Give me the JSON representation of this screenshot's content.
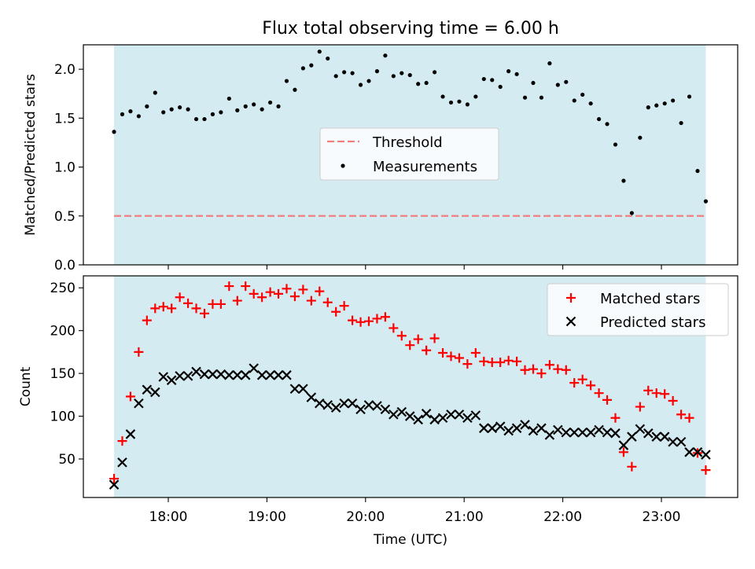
{
  "chart_data": {
    "title": "Flux total observing time = 6.00 h",
    "observing_window": [
      "17:27",
      "23:27"
    ],
    "colors": {
      "window": "#add8e6",
      "threshold": "#f08080",
      "measurements": "#000000",
      "matched": "#ff0000",
      "predicted": "#000000"
    },
    "panels": [
      {
        "type": "scatter",
        "ylabel": "Matched/Predicted stars",
        "ylim": [
          0,
          2.25
        ],
        "yticks": [
          0.0,
          0.5,
          1.0,
          1.5,
          2.0
        ],
        "ytick_labels": [
          "0.0",
          "0.5",
          "1.0",
          "1.5",
          "2.0"
        ],
        "legend_position": "center",
        "threshold": {
          "name": "Threshold",
          "value": 0.5
        },
        "series": [
          {
            "name": "Measurements",
            "marker": "dot",
            "x": [
              "17:27",
              "17:32",
              "17:37",
              "17:42",
              "17:47",
              "17:52",
              "17:57",
              "18:02",
              "18:07",
              "18:12",
              "18:17",
              "18:22",
              "18:27",
              "18:32",
              "18:37",
              "18:42",
              "18:47",
              "18:52",
              "18:57",
              "19:02",
              "19:07",
              "19:12",
              "19:17",
              "19:22",
              "19:27",
              "19:32",
              "19:37",
              "19:42",
              "19:47",
              "19:52",
              "19:57",
              "20:02",
              "20:07",
              "20:12",
              "20:17",
              "20:22",
              "20:27",
              "20:32",
              "20:37",
              "20:42",
              "20:47",
              "20:52",
              "20:57",
              "21:02",
              "21:07",
              "21:12",
              "21:17",
              "21:22",
              "21:27",
              "21:32",
              "21:37",
              "21:42",
              "21:47",
              "21:52",
              "21:57",
              "22:02",
              "22:07",
              "22:12",
              "22:17",
              "22:22",
              "22:27",
              "22:32",
              "22:37",
              "22:42",
              "22:47",
              "22:52",
              "22:57",
              "23:02",
              "23:07",
              "23:12",
              "23:17",
              "23:22",
              "23:27"
            ],
            "y": [
              1.36,
              1.54,
              1.57,
              1.52,
              1.62,
              1.76,
              1.56,
              1.59,
              1.61,
              1.59,
              1.49,
              1.49,
              1.54,
              1.56,
              1.7,
              1.58,
              1.62,
              1.64,
              1.59,
              1.66,
              1.62,
              1.88,
              1.79,
              2.01,
              2.04,
              2.18,
              2.11,
              1.93,
              1.97,
              1.96,
              1.84,
              1.88,
              1.98,
              2.14,
              1.93,
              1.96,
              1.94,
              1.85,
              1.86,
              1.97,
              1.72,
              1.66,
              1.67,
              1.64,
              1.72,
              1.9,
              1.89,
              1.82,
              1.98,
              1.95,
              1.71,
              1.86,
              1.71,
              2.06,
              1.84,
              1.87,
              1.68,
              1.74,
              1.65,
              1.49,
              1.44,
              1.23,
              0.86,
              0.53,
              1.3,
              1.61,
              1.63,
              1.65,
              1.68,
              1.45,
              1.72,
              0.96,
              0.65
            ]
          }
        ]
      },
      {
        "type": "scatter",
        "xlabel": "Time (UTC)",
        "ylabel": "Count",
        "ylim": [
          5,
          264
        ],
        "yticks": [
          50,
          100,
          150,
          200,
          250
        ],
        "ytick_labels": [
          "50",
          "100",
          "150",
          "200",
          "250"
        ],
        "xticks": [
          "18:00",
          "19:00",
          "20:00",
          "21:00",
          "22:00",
          "23:00"
        ],
        "legend_position": "top-right",
        "series": [
          {
            "name": "Matched stars",
            "marker": "plus",
            "x": [
              "17:27",
              "17:32",
              "17:37",
              "17:42",
              "17:47",
              "17:52",
              "17:57",
              "18:02",
              "18:07",
              "18:12",
              "18:17",
              "18:22",
              "18:27",
              "18:32",
              "18:37",
              "18:42",
              "18:47",
              "18:52",
              "18:57",
              "19:02",
              "19:07",
              "19:12",
              "19:17",
              "19:22",
              "19:27",
              "19:32",
              "19:37",
              "19:42",
              "19:47",
              "19:52",
              "19:57",
              "20:02",
              "20:07",
              "20:12",
              "20:17",
              "20:22",
              "20:27",
              "20:32",
              "20:37",
              "20:42",
              "20:47",
              "20:52",
              "20:57",
              "21:02",
              "21:07",
              "21:12",
              "21:17",
              "21:22",
              "21:27",
              "21:32",
              "21:37",
              "21:42",
              "21:47",
              "21:52",
              "21:57",
              "22:02",
              "22:07",
              "22:12",
              "22:17",
              "22:22",
              "22:27",
              "22:32",
              "22:37",
              "22:42",
              "22:47",
              "22:52",
              "22:57",
              "23:02",
              "23:07",
              "23:12",
              "23:17",
              "23:22",
              "23:27"
            ],
            "y": [
              27,
              71,
              123,
              175,
              212,
              226,
              228,
              226,
              239,
              232,
              226,
              220,
              231,
              231,
              252,
              235,
              252,
              243,
              239,
              245,
              243,
              249,
              240,
              248,
              235,
              246,
              233,
              222,
              229,
              212,
              210,
              211,
              214,
              216,
              203,
              194,
              183,
              190,
              177,
              191,
              174,
              170,
              168,
              161,
              174,
              164,
              163,
              163,
              165,
              164,
              154,
              155,
              150,
              160,
              155,
              154,
              139,
              143,
              136,
              127,
              119,
              98,
              58,
              41,
              111,
              130,
              127,
              126,
              118,
              102,
              98,
              57,
              37
            ]
          },
          {
            "name": "Predicted stars",
            "marker": "x",
            "x": [
              "17:27",
              "17:32",
              "17:37",
              "17:42",
              "17:47",
              "17:52",
              "17:57",
              "18:02",
              "18:07",
              "18:12",
              "18:17",
              "18:22",
              "18:27",
              "18:32",
              "18:37",
              "18:42",
              "18:47",
              "18:52",
              "18:57",
              "19:02",
              "19:07",
              "19:12",
              "19:17",
              "19:22",
              "19:27",
              "19:32",
              "19:37",
              "19:42",
              "19:47",
              "19:52",
              "19:57",
              "20:02",
              "20:07",
              "20:12",
              "20:17",
              "20:22",
              "20:27",
              "20:32",
              "20:37",
              "20:42",
              "20:47",
              "20:52",
              "20:57",
              "21:02",
              "21:07",
              "21:12",
              "21:17",
              "21:22",
              "21:27",
              "21:32",
              "21:37",
              "21:42",
              "21:47",
              "21:52",
              "21:57",
              "22:02",
              "22:07",
              "22:12",
              "22:17",
              "22:22",
              "22:27",
              "22:32",
              "22:37",
              "22:42",
              "22:47",
              "22:52",
              "22:57",
              "23:02",
              "23:07",
              "23:12",
              "23:17",
              "23:22",
              "23:27"
            ],
            "y": [
              20,
              46,
              79,
              115,
              131,
              128,
              146,
              142,
              147,
              147,
              152,
              149,
              149,
              149,
              148,
              148,
              148,
              156,
              148,
              148,
              148,
              148,
              132,
              132,
              122,
              115,
              113,
              110,
              115,
              115,
              108,
              113,
              112,
              108,
              102,
              105,
              100,
              96,
              103,
              96,
              98,
              102,
              102,
              98,
              101,
              86,
              86,
              88,
              83,
              86,
              90,
              83,
              86,
              78,
              84,
              81,
              81,
              81,
              81,
              84,
              81,
              80,
              66,
              76,
              85,
              80,
              76,
              76,
              70,
              70,
              58,
              58,
              55
            ]
          }
        ]
      }
    ]
  }
}
